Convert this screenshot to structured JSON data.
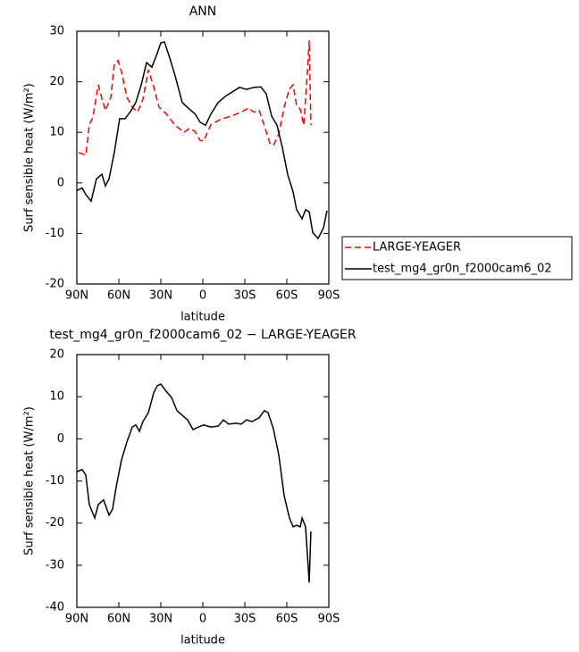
{
  "chart_data": [
    {
      "type": "line",
      "title": "ANN",
      "xlabel": "latitude",
      "ylabel": "Surf sensible heat (W/m²)",
      "xlim": [
        90,
        -90
      ],
      "ylim": [
        -20,
        30
      ],
      "xticks": [
        {
          "value": 90,
          "label": "90N"
        },
        {
          "value": 60,
          "label": "60N"
        },
        {
          "value": 30,
          "label": "30N"
        },
        0,
        {
          "value": -30,
          "label": "30S"
        },
        {
          "value": -60,
          "label": "60S"
        },
        {
          "value": -90,
          "label": "90S"
        }
      ],
      "yticks": [
        -20,
        -10,
        0,
        10,
        20,
        30
      ],
      "legend": "outside-right",
      "series": [
        {
          "name": "LARGE-YEAGER",
          "color": "#ff0000",
          "linestyle": "dashed",
          "x": [
            88.7,
            83.6,
            81.1,
            78.5,
            74.7,
            72.1,
            69.6,
            65.7,
            63.2,
            60.6,
            58.1,
            54.3,
            50.4,
            46.6,
            42.8,
            38.9,
            35.1,
            31.3,
            26.2,
            19.8,
            13.4,
            9.6,
            5.7,
            1.9,
            -0.6,
            -5.7,
            -12.1,
            -21.1,
            -27.4,
            -32.6,
            -36.4,
            -40.2,
            -44.0,
            -47.9,
            -50.4,
            -54.3,
            -58.1,
            -61.9,
            -64.5,
            -67.0,
            -69.6,
            -72.1,
            -74.7,
            -76.0,
            -77.2
          ],
          "values": [
            6,
            5.5,
            11.5,
            13,
            19.4,
            16.7,
            14.3,
            17,
            23.5,
            24.2,
            22,
            17,
            15,
            14,
            16.5,
            22.4,
            19,
            15,
            13.7,
            11.4,
            10,
            10.8,
            10.2,
            8.4,
            8.3,
            11.5,
            12.5,
            13.3,
            14,
            14.8,
            14,
            14.4,
            11.3,
            7.8,
            7.4,
            9.7,
            15,
            18.6,
            19.4,
            15.3,
            14.6,
            11.4,
            22,
            28.2,
            11.4
          ]
        },
        {
          "name": "test_mg4_gr0n_f2000cam6_02",
          "color": "#000000",
          "linestyle": "solid",
          "x": [
            90,
            86.2,
            83.6,
            79.8,
            76,
            72.1,
            69.6,
            67.0,
            63.2,
            59.4,
            55.5,
            51.7,
            47.9,
            44.0,
            40.2,
            36.4,
            32.6,
            30.0,
            27.4,
            23.6,
            19.8,
            14.7,
            9.6,
            5.7,
            1.9,
            -1.9,
            -5.7,
            -10.9,
            -16.0,
            -21.1,
            -26.2,
            -31.3,
            -36.4,
            -41.5,
            -45.3,
            -49.2,
            -53.0,
            -56.8,
            -60.6,
            -64.5,
            -67.0,
            -70.9,
            -73.4,
            -76.0,
            -78.5,
            -82.3,
            -86.2,
            -88.7
          ],
          "values": [
            -1.5,
            -1,
            -2.3,
            -3.6,
            0.8,
            1.7,
            -0.6,
            0.8,
            6.1,
            12.7,
            12.7,
            14.1,
            15.9,
            19.4,
            23.8,
            22.9,
            25.6,
            27.7,
            27.9,
            24.7,
            21.2,
            15.9,
            14.6,
            13.7,
            12,
            11.4,
            13.6,
            15.9,
            17.1,
            18,
            18.9,
            18.5,
            18.9,
            19,
            17.6,
            13.2,
            11.4,
            7,
            1.7,
            -1.8,
            -5.3,
            -7.1,
            -5.3,
            -5.7,
            -9.8,
            -11,
            -8.9,
            -5.5
          ]
        }
      ]
    },
    {
      "type": "line",
      "title": "test_mg4_gr0n_f2000cam6_02 − LARGE-YEAGER",
      "xlabel": "latitude",
      "ylabel": "Surf sensible heat (W/m²)",
      "xlim": [
        90,
        -90
      ],
      "ylim": [
        -40,
        20
      ],
      "xticks": [
        {
          "value": 90,
          "label": "90N"
        },
        {
          "value": 60,
          "label": "60N"
        },
        {
          "value": 30,
          "label": "30N"
        },
        0,
        {
          "value": -30,
          "label": "30S"
        },
        {
          "value": -60,
          "label": "60S"
        },
        {
          "value": -90,
          "label": "90S"
        }
      ],
      "yticks": [
        -40,
        -30,
        -20,
        -10,
        0,
        10,
        20
      ],
      "series": [
        {
          "color": "#000000",
          "linestyle": "solid",
          "x": [
            90,
            86.2,
            83.6,
            81.1,
            77.2,
            74.7,
            70.9,
            67.0,
            64.5,
            61.9,
            58.1,
            54.3,
            50.4,
            47.9,
            45.3,
            42.8,
            38.9,
            35.1,
            32.6,
            30.0,
            26.2,
            22.3,
            18.5,
            14.7,
            10.9,
            7.0,
            3.2,
            -0.6,
            -5.7,
            -10.9,
            -14.7,
            -18.5,
            -23.6,
            -27.4,
            -31.3,
            -35.1,
            -40.2,
            -44.0,
            -46.6,
            -50.4,
            -54.3,
            -58.1,
            -61.9,
            -64.5,
            -67.0,
            -69.6,
            -70.9,
            -73.4,
            -76.0,
            -77.2
          ],
          "values": [
            -7.8,
            -7.3,
            -8.6,
            -15.6,
            -18.8,
            -15.6,
            -14.5,
            -18.1,
            -16.7,
            -11.4,
            -5,
            -0.8,
            2.8,
            3.3,
            1.8,
            4.1,
            6.2,
            10.9,
            12.6,
            13,
            11.3,
            9.8,
            6.7,
            5.6,
            4.5,
            2.2,
            2.8,
            3.3,
            2.8,
            3,
            4.5,
            3.5,
            3.7,
            3.5,
            4.5,
            4.1,
            5,
            6.7,
            6.2,
            2.4,
            -3.9,
            -13.5,
            -18.8,
            -20.9,
            -20.5,
            -20.9,
            -18.8,
            -20.9,
            -34.1,
            -22
          ]
        }
      ]
    }
  ]
}
